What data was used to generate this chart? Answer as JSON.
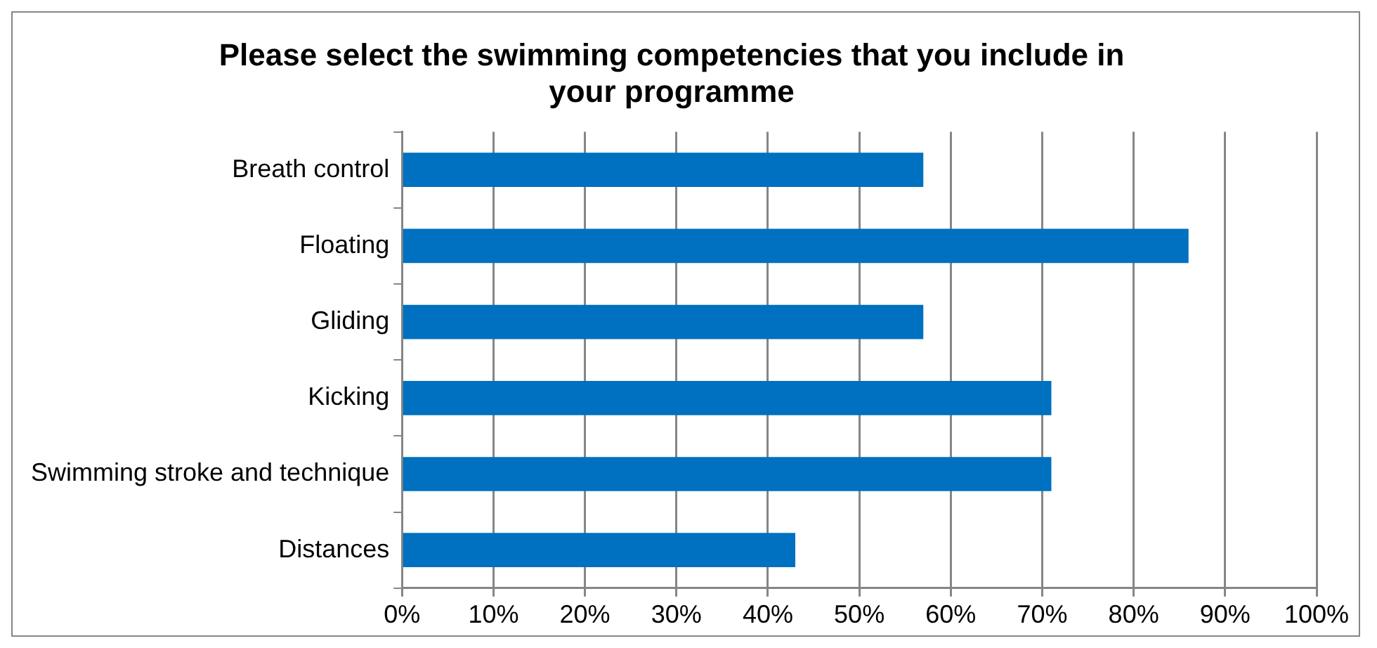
{
  "chart_data": {
    "type": "bar",
    "orientation": "horizontal",
    "title": "Please select the swimming competencies that you include in your programme",
    "categories": [
      "Breath control",
      "Floating",
      "Gliding",
      "Kicking",
      "Swimming stroke and technique",
      "Distances"
    ],
    "values": [
      57,
      86,
      57,
      71,
      71,
      43
    ],
    "color": "#0070c0",
    "xlim": [
      0,
      100
    ],
    "xticks": [
      {
        "value": 0,
        "label": "0%"
      },
      {
        "value": 10,
        "label": "10%"
      },
      {
        "value": 20,
        "label": "20%"
      },
      {
        "value": 30,
        "label": "30%"
      },
      {
        "value": 40,
        "label": "40%"
      },
      {
        "value": 50,
        "label": "50%"
      },
      {
        "value": 60,
        "label": "60%"
      },
      {
        "value": 70,
        "label": "70%"
      },
      {
        "value": 80,
        "label": "80%"
      },
      {
        "value": 90,
        "label": "90%"
      },
      {
        "value": 100,
        "label": "100%"
      }
    ],
    "grid": "x",
    "legend": false
  }
}
